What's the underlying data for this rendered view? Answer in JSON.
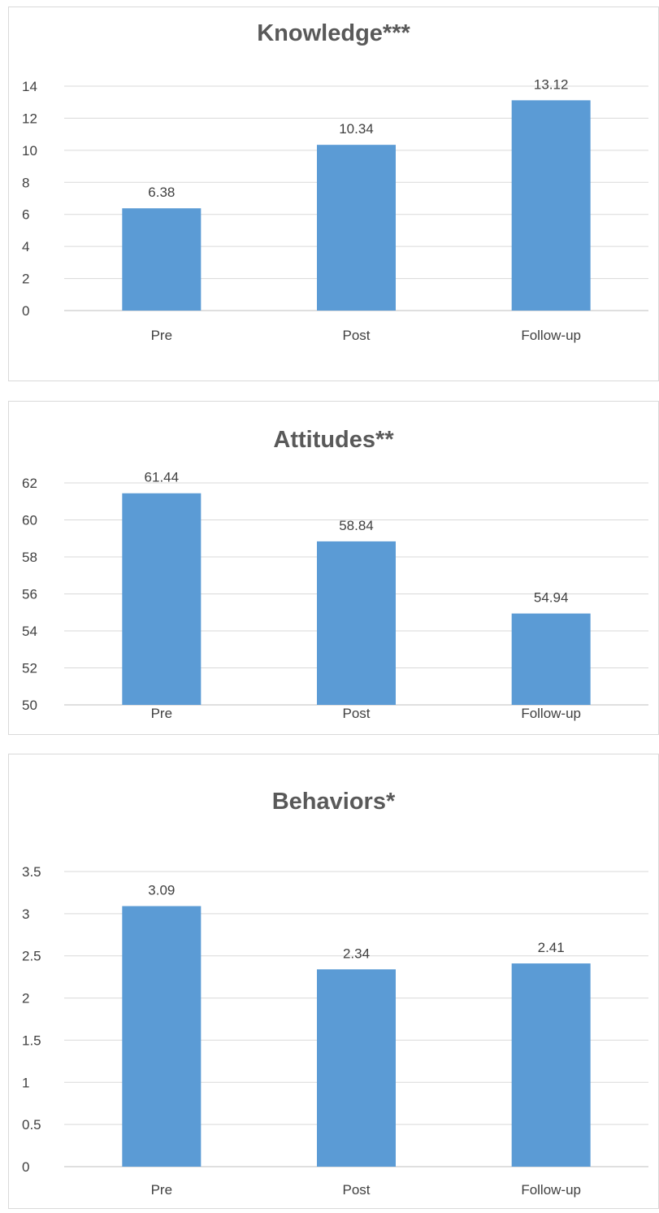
{
  "chart_data": [
    {
      "type": "bar",
      "title": "Knowledge***",
      "categories": [
        "Pre",
        "Post",
        "Follow-up"
      ],
      "values": [
        6.38,
        10.34,
        13.12
      ],
      "value_labels": [
        "6.38",
        "10.34",
        "13.12"
      ],
      "ylim": [
        0,
        14
      ],
      "yticks": [
        "0",
        "2",
        "4",
        "6",
        "8",
        "10",
        "12",
        "14"
      ],
      "grid": true,
      "xlabel": "",
      "ylabel": "",
      "bar_color": "#5b9bd5"
    },
    {
      "type": "bar",
      "title": "Attitudes**",
      "categories": [
        "Pre",
        "Post",
        "Follow-up"
      ],
      "values": [
        61.44,
        58.84,
        54.94
      ],
      "value_labels": [
        "61.44",
        "58.84",
        "54.94"
      ],
      "ylim": [
        50,
        62
      ],
      "yticks": [
        "50",
        "52",
        "54",
        "56",
        "58",
        "60",
        "62"
      ],
      "grid": true,
      "xlabel": "",
      "ylabel": "",
      "bar_color": "#5b9bd5"
    },
    {
      "type": "bar",
      "title": "Behaviors*",
      "categories": [
        "Pre",
        "Post",
        "Follow-up"
      ],
      "values": [
        3.09,
        2.34,
        2.41
      ],
      "value_labels": [
        "3.09",
        "2.34",
        "2.41"
      ],
      "ylim": [
        0,
        3.5
      ],
      "yticks": [
        "0",
        "0.5",
        "1",
        "1.5",
        "2",
        "2.5",
        "3",
        "3.5"
      ],
      "grid": true,
      "xlabel": "",
      "ylabel": "",
      "bar_color": "#5b9bd5"
    }
  ]
}
